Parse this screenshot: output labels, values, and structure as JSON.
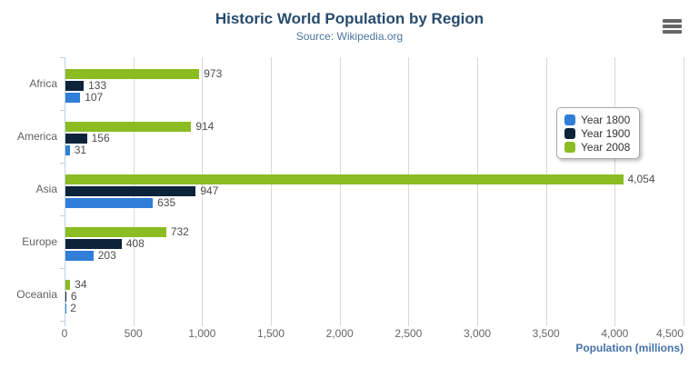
{
  "chart_data": {
    "type": "bar",
    "orientation": "horizontal",
    "title": "Historic World Population by Region",
    "subtitle": "Source: Wikipedia.org",
    "xlabel": "Population (millions)",
    "ylabel": "",
    "categories": [
      "Africa",
      "America",
      "Asia",
      "Europe",
      "Oceania"
    ],
    "series": [
      {
        "name": "Year 1800",
        "color": "#2f7ed8",
        "values": [
          107,
          31,
          635,
          203,
          2
        ]
      },
      {
        "name": "Year 1900",
        "color": "#0d233a",
        "values": [
          133,
          156,
          947,
          408,
          6
        ]
      },
      {
        "name": "Year 2008",
        "color": "#8bbc21",
        "values": [
          973,
          914,
          4054,
          732,
          34
        ]
      }
    ],
    "bar_order_top_to_bottom": [
      "Year 2008",
      "Year 1900",
      "Year 1800"
    ],
    "xlim": [
      0,
      4500
    ],
    "xticks": [
      0,
      500,
      1000,
      1500,
      2000,
      2500,
      3000,
      3500,
      4000,
      4500
    ],
    "grid": "vertical",
    "data_labels": true,
    "legend_position": "right",
    "axis_colors": {
      "line": "#c0d0e0",
      "grid": "#d8d8d8",
      "tick_label": "#666666",
      "data_label": "#4d4d4d",
      "title": "#274b6d",
      "subtitle": "#4d759e",
      "axis_title": "#4572a7"
    }
  },
  "export_menu": {
    "icon": "hamburger-icon"
  }
}
